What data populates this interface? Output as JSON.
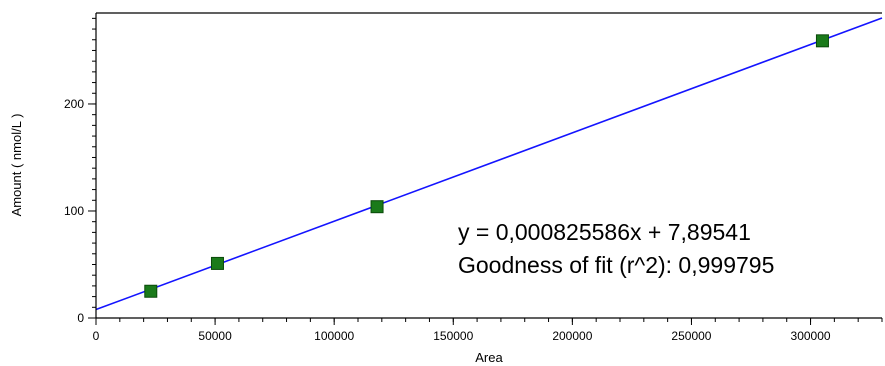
{
  "chart_data": {
    "type": "scatter",
    "xlabel": "Area",
    "ylabel": "Amount ( nmol/L )",
    "xlim": [
      0,
      330000
    ],
    "ylim": [
      0,
      285
    ],
    "x_ticks_labeled": [
      0,
      50000,
      100000,
      150000,
      200000,
      250000,
      300000
    ],
    "y_ticks_labeled": [
      0,
      100,
      200
    ],
    "points": [
      {
        "x": 23000,
        "y": 25
      },
      {
        "x": 51000,
        "y": 51
      },
      {
        "x": 118000,
        "y": 104
      },
      {
        "x": 305000,
        "y": 259
      }
    ],
    "fit_line": {
      "slope": 0.000825586,
      "intercept": 7.89541
    },
    "annotations": [
      "y = 0,000825586x + 7,89541",
      "Goodness of fit (r^2): 0,999795"
    ],
    "grid": false,
    "colors": {
      "marker_fill": "#1a7a1a",
      "marker_edge": "#0a4a0a",
      "fit_line": "#1414ff",
      "axis": "#000000"
    }
  }
}
